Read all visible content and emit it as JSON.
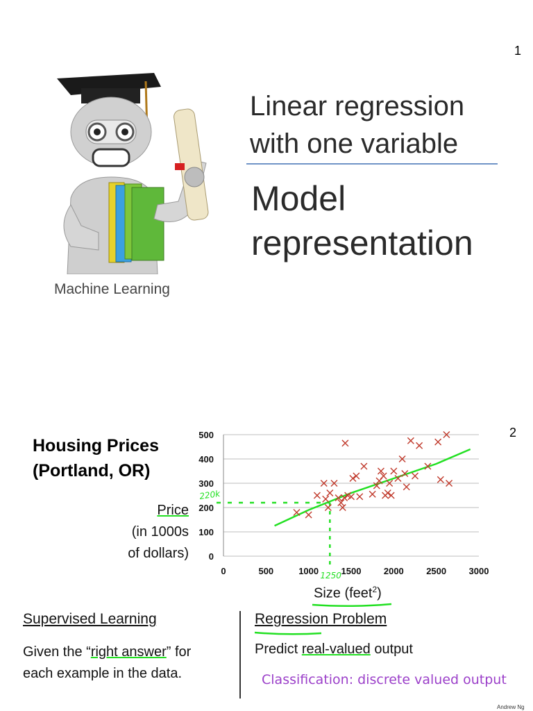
{
  "slide1": {
    "page_number": "1",
    "title_line1": "Linear regression",
    "title_line2": "with one variable",
    "subtitle_line1": "Model",
    "subtitle_line2": "representation",
    "course_label": "Machine Learning"
  },
  "slide2": {
    "page_number": "2",
    "heading_line1": "Housing Prices",
    "heading_line2": "(Portland, OR)",
    "ylabel_line1": "Price",
    "ylabel_line2": "(in 1000s",
    "ylabel_line3": "of dollars)",
    "xlabel_text": "Size (feet",
    "xlabel_sup": "2",
    "xlabel_close": ")",
    "annotation_price": "220k",
    "annotation_size": "1250",
    "supervised_title": "Supervised Learning",
    "supervised_body_pre": "Given the “",
    "supervised_body_link": "right answer",
    "supervised_body_post": "” for",
    "supervised_body_line2": "each example in the data.",
    "regression_title": "Regression Problem",
    "regression_body_pre": "Predict ",
    "regression_body_link": "real-valued",
    "regression_body_post": " output",
    "classification_note": "Classification: discrete valued output",
    "credit": "Andrew Ng"
  },
  "colors": {
    "title_rule": "#6f93c7",
    "data_points": "#c0392b",
    "annotation": "#22e022",
    "classification_text": "#9b3fc9"
  },
  "chart_data": {
    "type": "scatter",
    "xlim": [
      0,
      3000
    ],
    "ylim": [
      0,
      500
    ],
    "x_ticks": [
      0,
      500,
      1000,
      1500,
      2000,
      2500,
      3000
    ],
    "y_ticks": [
      0,
      100,
      200,
      300,
      400,
      500
    ],
    "grid": true,
    "points": [
      [
        860,
        180
      ],
      [
        1000,
        170
      ],
      [
        1100,
        250
      ],
      [
        1180,
        300
      ],
      [
        1200,
        235
      ],
      [
        1230,
        200
      ],
      [
        1250,
        260
      ],
      [
        1300,
        300
      ],
      [
        1350,
        240
      ],
      [
        1380,
        220
      ],
      [
        1400,
        200
      ],
      [
        1420,
        240
      ],
      [
        1430,
        465
      ],
      [
        1460,
        250
      ],
      [
        1500,
        245
      ],
      [
        1520,
        320
      ],
      [
        1560,
        330
      ],
      [
        1600,
        245
      ],
      [
        1650,
        370
      ],
      [
        1750,
        255
      ],
      [
        1800,
        290
      ],
      [
        1830,
        310
      ],
      [
        1850,
        350
      ],
      [
        1880,
        330
      ],
      [
        1900,
        250
      ],
      [
        1930,
        260
      ],
      [
        1950,
        300
      ],
      [
        1970,
        250
      ],
      [
        2000,
        350
      ],
      [
        2050,
        320
      ],
      [
        2100,
        400
      ],
      [
        2130,
        340
      ],
      [
        2150,
        285
      ],
      [
        2200,
        475
      ],
      [
        2250,
        330
      ],
      [
        2300,
        455
      ],
      [
        2400,
        370
      ],
      [
        2520,
        470
      ],
      [
        2550,
        315
      ],
      [
        2620,
        500
      ],
      [
        2650,
        300
      ]
    ],
    "fit_line": [
      [
        600,
        125
      ],
      [
        1000,
        190
      ],
      [
        1500,
        260
      ],
      [
        2000,
        320
      ],
      [
        2500,
        380
      ],
      [
        2900,
        440
      ]
    ],
    "annotation_point": [
      1250,
      220
    ]
  }
}
